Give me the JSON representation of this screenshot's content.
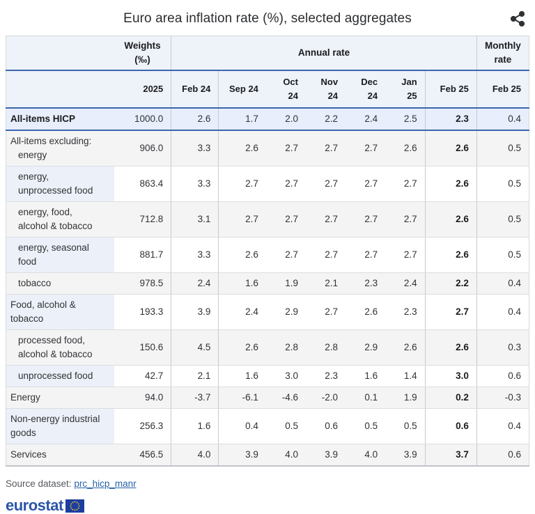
{
  "title": "Euro area inflation rate (%), selected aggregates",
  "header": {
    "weights_line1": "Weights",
    "weights_line2": "(‰)",
    "annual_group": "Annual rate",
    "monthly_line1": "Monthly",
    "monthly_line2": "rate",
    "weights_year": "2025",
    "months": [
      "Feb 24",
      "Sep 24",
      "Oct 24",
      "Nov 24",
      "Dec 24",
      "Jan 25",
      "Feb 25"
    ],
    "monthly_month": "Feb 25"
  },
  "chart_data": {
    "type": "table",
    "title": "Euro area inflation rate (%), selected aggregates",
    "columns": [
      "Weights (‰) 2025",
      "Feb 24",
      "Sep 24",
      "Oct 24",
      "Nov 24",
      "Dec 24",
      "Jan 25",
      "Feb 25",
      "Monthly rate Feb 25"
    ],
    "rows": [
      {
        "label_lines": [
          {
            "text": "All-items HICP",
            "indent": false
          }
        ],
        "bold": true,
        "weight": "1000.0",
        "values": [
          "2.6",
          "1.7",
          "2.0",
          "2.2",
          "2.4",
          "2.5",
          "2.3"
        ],
        "monthly": "0.4"
      },
      {
        "label_lines": [
          {
            "text": "All-items excluding:",
            "indent": false
          },
          {
            "text": "energy",
            "indent": true
          }
        ],
        "bold": false,
        "weight": "906.0",
        "values": [
          "3.3",
          "2.6",
          "2.7",
          "2.7",
          "2.7",
          "2.6",
          "2.6"
        ],
        "monthly": "0.5"
      },
      {
        "label_lines": [
          {
            "text": "energy,",
            "indent": true
          },
          {
            "text": "unprocessed food",
            "indent": true
          }
        ],
        "bold": false,
        "weight": "863.4",
        "values": [
          "3.3",
          "2.7",
          "2.7",
          "2.7",
          "2.7",
          "2.7",
          "2.6"
        ],
        "monthly": "0.5"
      },
      {
        "label_lines": [
          {
            "text": "energy, food,",
            "indent": true
          },
          {
            "text": "alcohol & tobacco",
            "indent": true
          }
        ],
        "bold": false,
        "weight": "712.8",
        "values": [
          "3.1",
          "2.7",
          "2.7",
          "2.7",
          "2.7",
          "2.7",
          "2.6"
        ],
        "monthly": "0.5"
      },
      {
        "label_lines": [
          {
            "text": "energy, seasonal",
            "indent": true
          },
          {
            "text": "food",
            "indent": true
          }
        ],
        "bold": false,
        "weight": "881.7",
        "values": [
          "3.3",
          "2.6",
          "2.7",
          "2.7",
          "2.7",
          "2.7",
          "2.6"
        ],
        "monthly": "0.5"
      },
      {
        "label_lines": [
          {
            "text": "tobacco",
            "indent": true
          }
        ],
        "bold": false,
        "weight": "978.5",
        "values": [
          "2.4",
          "1.6",
          "1.9",
          "2.1",
          "2.3",
          "2.4",
          "2.2"
        ],
        "monthly": "0.4"
      },
      {
        "label_lines": [
          {
            "text": "Food, alcohol &",
            "indent": false
          },
          {
            "text": "tobacco",
            "indent": false
          }
        ],
        "bold": false,
        "weight": "193.3",
        "values": [
          "3.9",
          "2.4",
          "2.9",
          "2.7",
          "2.6",
          "2.3",
          "2.7"
        ],
        "monthly": "0.4"
      },
      {
        "label_lines": [
          {
            "text": "processed food,",
            "indent": true
          },
          {
            "text": "alcohol & tobacco",
            "indent": true
          }
        ],
        "bold": false,
        "weight": "150.6",
        "values": [
          "4.5",
          "2.6",
          "2.8",
          "2.8",
          "2.9",
          "2.6",
          "2.6"
        ],
        "monthly": "0.3"
      },
      {
        "label_lines": [
          {
            "text": "unprocessed food",
            "indent": true
          }
        ],
        "bold": false,
        "weight": "42.7",
        "values": [
          "2.1",
          "1.6",
          "3.0",
          "2.3",
          "1.6",
          "1.4",
          "3.0"
        ],
        "monthly": "0.6"
      },
      {
        "label_lines": [
          {
            "text": "Energy",
            "indent": false
          }
        ],
        "bold": false,
        "weight": "94.0",
        "values": [
          "-3.7",
          "-6.1",
          "-4.6",
          "-2.0",
          "0.1",
          "1.9",
          "0.2"
        ],
        "monthly": "-0.3"
      },
      {
        "label_lines": [
          {
            "text": "Non-energy industrial",
            "indent": false
          },
          {
            "text": "goods",
            "indent": false
          }
        ],
        "bold": false,
        "weight": "256.3",
        "values": [
          "1.6",
          "0.4",
          "0.5",
          "0.6",
          "0.5",
          "0.5",
          "0.6"
        ],
        "monthly": "0.4"
      },
      {
        "label_lines": [
          {
            "text": "Services",
            "indent": false
          }
        ],
        "bold": false,
        "weight": "456.5",
        "values": [
          "4.0",
          "3.9",
          "4.0",
          "3.9",
          "4.0",
          "3.9",
          "3.7"
        ],
        "monthly": "0.6"
      }
    ]
  },
  "footer": {
    "source_label": "Source dataset: ",
    "source_link": "prc_hicp_manr",
    "logo_text": "eurostat"
  },
  "colors": {
    "accent_blue_border": "#3a66ad",
    "header_bg": "#eef2f9",
    "hicp_row_bg": "#e8eefb",
    "stripe_bg": "#f4f4f5",
    "link_blue": "#2862a9",
    "eurostat_blue": "#2b55a7",
    "eu_flag_blue": "#1e3e9f",
    "eu_star_yellow": "#ffd617"
  }
}
